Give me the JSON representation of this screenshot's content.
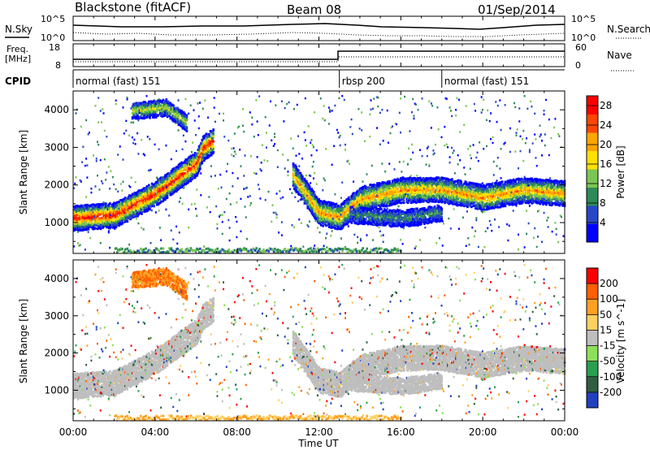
{
  "header": {
    "station": "Blackstone (fitACF)",
    "beam": "Beam 08",
    "date": "01/Sep/2014"
  },
  "noise_panel": {
    "left_label": "N.Sky",
    "right_label": "N.Search",
    "left_ticks": [
      "10^5",
      "10^0"
    ],
    "right_ticks": [
      "10^5",
      "10^0"
    ]
  },
  "freq_panel": {
    "left_label_line1": "Freq.",
    "left_label_line2": "[MHz]",
    "right_label": "Nave",
    "left_ticks": [
      "18",
      "8"
    ],
    "right_ticks": [
      "60",
      "0"
    ]
  },
  "cpid": {
    "label": "CPID",
    "segments": [
      {
        "name": "normal (fast) 151",
        "start_hour": 0,
        "end_hour": 13
      },
      {
        "name": "rbsp 200",
        "start_hour": 13,
        "end_hour": 18
      },
      {
        "name": "normal (fast) 151",
        "start_hour": 18,
        "end_hour": 24
      }
    ]
  },
  "chart_data": [
    {
      "type": "heatmap",
      "title": "",
      "xlabel": "Time UT",
      "ylabel": "Slant Range [km]",
      "xlim": [
        0,
        24
      ],
      "ylim": [
        180,
        4500
      ],
      "x_tick_labels": [
        "00:00",
        "04:00",
        "08:00",
        "12:00",
        "16:00",
        "20:00",
        "00:00"
      ],
      "y_tick_labels": [
        "1000",
        "2000",
        "3000",
        "4000"
      ],
      "colorbar": {
        "label": "Power [dB]",
        "ticks": [
          "4",
          "8",
          "12",
          "16",
          "20",
          "24",
          "28"
        ],
        "range": [
          0,
          30
        ],
        "colors": [
          "#0000ff",
          "#2847c8",
          "#2d8a57",
          "#7bc653",
          "#ffe000",
          "#ffa500",
          "#ff4500",
          "#ff0000"
        ]
      },
      "scatter_bands": [
        {
          "name": "main",
          "range_km_by_hour": [
            [
              0,
              1150
            ],
            [
              2,
              1230
            ],
            [
              4,
              1800
            ],
            [
              6,
              2600
            ],
            [
              6.3,
              3000
            ],
            [
              6.8,
              3200
            ]
          ],
          "power_db": 28
        },
        {
          "name": "main-late",
          "range_km_by_hour": [
            [
              10.7,
              2300
            ],
            [
              12,
              1300
            ],
            [
              13,
              1180
            ],
            [
              14,
              1650
            ],
            [
              16,
              1900
            ],
            [
              18,
              1900
            ],
            [
              20,
              1700
            ],
            [
              22,
              1900
            ],
            [
              24,
              1800
            ]
          ],
          "power_db": 22
        },
        {
          "name": "upper-patch",
          "range_km_by_hour": [
            [
              2.8,
              4000
            ],
            [
              4.5,
              4100
            ],
            [
              5.5,
              3700
            ]
          ],
          "power_db": 16
        },
        {
          "name": "lower-layer",
          "range_km_by_hour": [
            [
              13.5,
              1250
            ],
            [
              16,
              1150
            ],
            [
              18,
              1300
            ]
          ],
          "power_db": 10
        }
      ]
    },
    {
      "type": "heatmap",
      "title": "",
      "xlabel": "Time UT",
      "ylabel": "Slant Range [km]",
      "xlim": [
        0,
        24
      ],
      "ylim": [
        180,
        4500
      ],
      "x_tick_labels": [
        "00:00",
        "04:00",
        "08:00",
        "12:00",
        "16:00",
        "20:00",
        "00:00"
      ],
      "y_tick_labels": [
        "1000",
        "2000",
        "3000",
        "4000"
      ],
      "colorbar": {
        "label": "Velocity [m s^-1]",
        "ticks": [
          "200",
          "100",
          "50",
          "15",
          "-15",
          "-50",
          "-100",
          "-200"
        ],
        "range": [
          -250,
          250
        ],
        "colors": [
          "#2040c0",
          "#2f5e40",
          "#28a050",
          "#8ee05a",
          "#bebebe",
          "#ffd060",
          "#ffa020",
          "#ff6000",
          "#ff0000"
        ]
      },
      "ground_scatter_color": "#bebebe"
    }
  ]
}
